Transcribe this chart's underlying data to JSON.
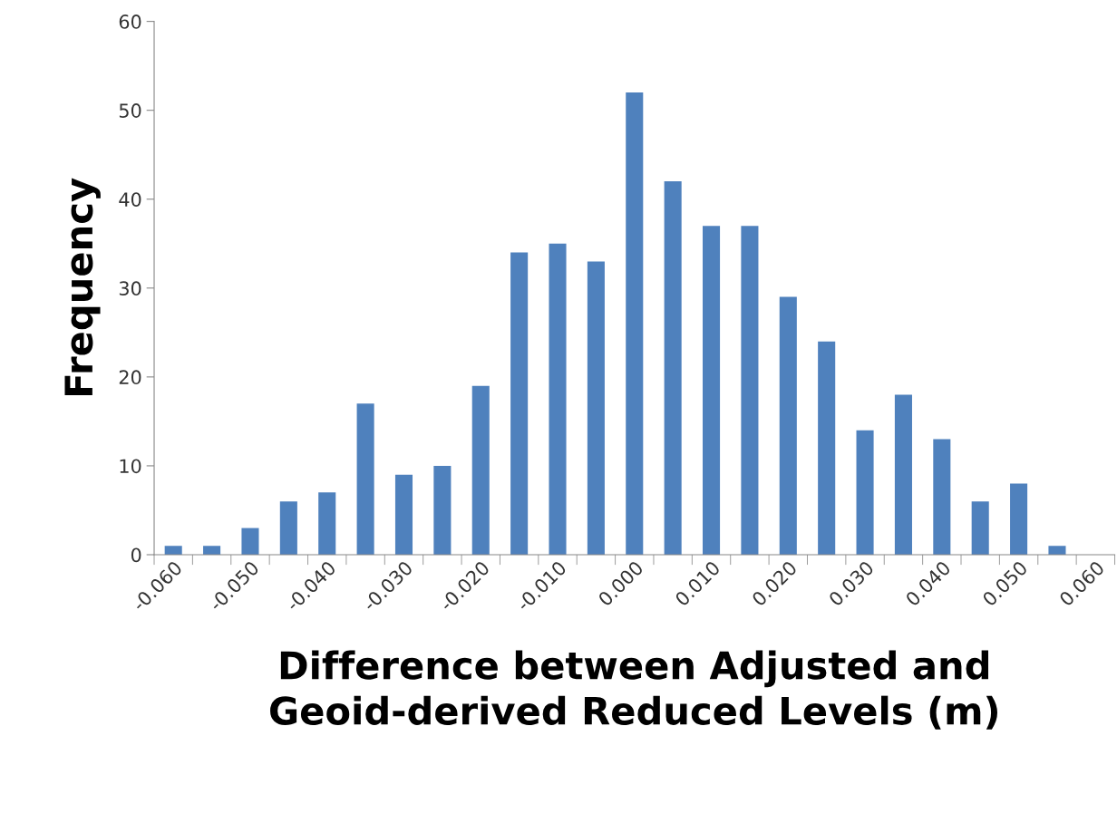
{
  "chart_data": {
    "type": "bar",
    "xlabel": "Difference between Adjusted and\nGeoid-derived Reduced Levels (m)",
    "ylabel": "Frequency",
    "categories": [
      "-0.060",
      null,
      "-0.050",
      null,
      "-0.040",
      null,
      "-0.030",
      null,
      "-0.020",
      null,
      "-0.010",
      null,
      "0.000",
      null,
      "0.010",
      null,
      "0.020",
      null,
      "0.030",
      null,
      "0.040",
      null,
      "0.050",
      null,
      "0.060"
    ],
    "values": [
      1,
      1,
      3,
      6,
      7,
      17,
      9,
      10,
      19,
      34,
      35,
      33,
      52,
      42,
      37,
      37,
      29,
      24,
      14,
      18,
      13,
      6,
      8,
      1,
      0
    ],
    "color": "#4f81bd",
    "ylim": [
      0,
      60
    ],
    "yticks": [
      0,
      10,
      20,
      30,
      40,
      50,
      60
    ],
    "grid": false,
    "legend": false
  }
}
